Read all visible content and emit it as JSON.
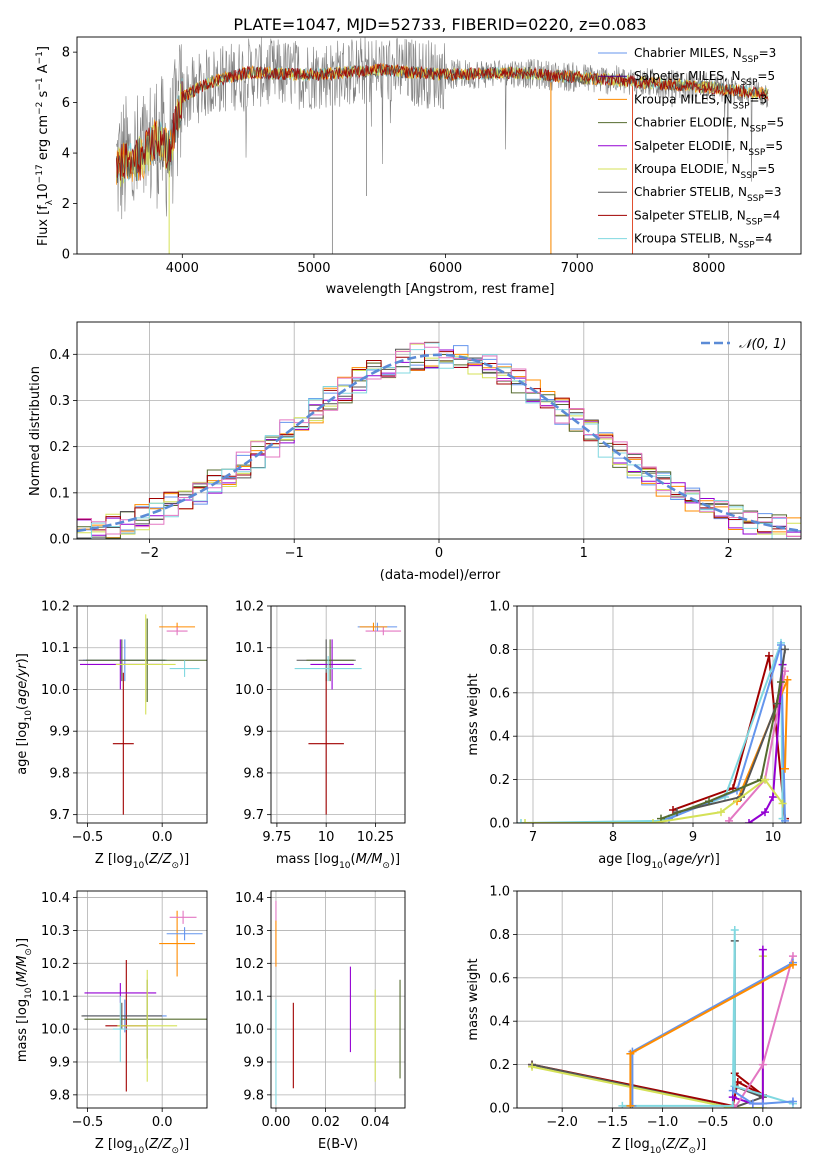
{
  "figure": {
    "title": "PLATE=1047, MJD=52733, FIBERID=0220, z=0.083"
  },
  "colors": {
    "Chabrier MILES": "#6495ed",
    "Salpeter MILES": "#4b0082",
    "Kroupa MILES": "#ff8c00",
    "Chabrier ELODIE": "#556b2f",
    "Salpeter ELODIE": "#9400d3",
    "Kroupa ELODIE": "#d4e157",
    "Chabrier STELIB": "#555555",
    "Salpeter STELIB": "#a00000",
    "Kroupa STELIB": "#80d8e0",
    "extra_pink": "#e377c2",
    "gauss": "#5b8bd6",
    "spectrum_data": "#808080"
  },
  "chart_data": [
    {
      "id": "spectrum",
      "type": "line",
      "title": "PLATE=1047, MJD=52733, FIBERID=0220, z=0.083",
      "xlabel": "wavelength [Angstrom, rest frame]",
      "ylabel": "Flux [f_λ 10^-17 erg cm^-2 s^-1 A^-1]",
      "xlim": [
        3200,
        8700
      ],
      "ylim": [
        0,
        8.6
      ],
      "xticks": [
        4000,
        5000,
        6000,
        7000,
        8000
      ],
      "yticks": [
        0,
        2,
        4,
        6,
        8
      ],
      "legend": {
        "placement": "right",
        "entries": [
          {
            "name": "Chabrier MILES",
            "nssp": "3"
          },
          {
            "name": "Salpeter MILES",
            "nssp": "5"
          },
          {
            "name": "Kroupa MILES",
            "nssp": "3"
          },
          {
            "name": "Chabrier ELODIE",
            "nssp": "5"
          },
          {
            "name": "Salpeter ELODIE",
            "nssp": "5"
          },
          {
            "name": "Kroupa ELODIE",
            "nssp": "5"
          },
          {
            "name": "Chabrier STELIB",
            "nssp": "3"
          },
          {
            "name": "Salpeter STELIB",
            "nssp": "4"
          },
          {
            "name": "Kroupa STELIB",
            "nssp": "4"
          }
        ]
      },
      "continuum": {
        "x": [
          3500,
          3700,
          3800,
          3900,
          4000,
          4200,
          4500,
          5000,
          5500,
          6000,
          6500,
          7000,
          7500,
          8000,
          8500
        ],
        "y": [
          3.5,
          3.8,
          4.6,
          4.0,
          6.2,
          6.8,
          7.2,
          7.1,
          7.3,
          7.1,
          7.2,
          7.0,
          6.8,
          6.6,
          6.3
        ]
      },
      "model_range": [
        3500,
        8450
      ],
      "data_range": [
        3500,
        8450
      ],
      "dips": [
        {
          "x": 5140,
          "y": 0
        },
        {
          "x": 5400,
          "y": 2.3
        },
        {
          "x": 6800,
          "y": 0
        },
        {
          "x": 7420,
          "y": 0
        }
      ]
    },
    {
      "id": "residual_hist",
      "type": "line",
      "xlabel": "(data-model)/error",
      "ylabel": "Normed distribution",
      "xlim": [
        -2.5,
        2.5
      ],
      "ylim": [
        0,
        0.47
      ],
      "xticks": [
        -2,
        -1,
        0,
        1,
        2
      ],
      "yticks": [
        0.0,
        0.1,
        0.2,
        0.3,
        0.4
      ],
      "legend": "𝒩(0, 1)",
      "gauss": {
        "mu": 0,
        "sigma": 1
      },
      "bin_width": 0.1
    },
    {
      "id": "z_age",
      "type": "scatter",
      "xlabel": "Z [log10(Z/Z⊙)]",
      "ylabel": "age  [log10(age/yr)]",
      "xlim": [
        -0.57,
        0.3
      ],
      "ylim": [
        9.68,
        10.2
      ],
      "xticks": [
        -0.5,
        0.0
      ],
      "xticklabels": [
        "−0.5",
        "0.0"
      ],
      "yticks": [
        9.7,
        9.8,
        9.9,
        10.0,
        10.1,
        10.2
      ],
      "points": [
        {
          "x": -0.25,
          "y": 10.07,
          "xerr": 0.28,
          "yerr": 0.05,
          "c": "#6495ed"
        },
        {
          "x": -0.26,
          "y": 9.87,
          "xerr": 0.07,
          "yerr": 0.17,
          "c": "#a00000"
        },
        {
          "x": -0.28,
          "y": 10.06,
          "xerr": 0.27,
          "yerr": 0.06,
          "c": "#9400d3"
        },
        {
          "x": -0.27,
          "y": 10.07,
          "xerr": 0.29,
          "yerr": 0.05,
          "c": "#555555"
        },
        {
          "x": -0.1,
          "y": 10.07,
          "xerr": 0.41,
          "yerr": 0.1,
          "c": "#556b2f"
        },
        {
          "x": -0.11,
          "y": 10.06,
          "xerr": 0.2,
          "yerr": 0.12,
          "c": "#d4e157"
        },
        {
          "x": 0.1,
          "y": 10.15,
          "xerr": 0.12,
          "yerr": 0.01,
          "c": "#ff8c00"
        },
        {
          "x": 0.1,
          "y": 10.14,
          "xerr": 0.07,
          "yerr": 0.01,
          "c": "#e377c2"
        },
        {
          "x": 0.15,
          "y": 10.05,
          "xerr": 0.1,
          "yerr": 0.02,
          "c": "#80d8e0"
        }
      ]
    },
    {
      "id": "mass_age",
      "type": "scatter",
      "xlabel": "mass [log10(M/M⊙)]",
      "ylabel": "",
      "xlim": [
        9.72,
        10.4
      ],
      "ylim": [
        9.68,
        10.2
      ],
      "xticks": [
        9.75,
        10.0,
        10.25
      ],
      "yticks": [
        9.7,
        9.8,
        9.9,
        10.0,
        10.1,
        10.2
      ],
      "points": [
        {
          "x": 10.0,
          "y": 10.07,
          "xerr": 0.15,
          "yerr": 0.05,
          "c": "#555555"
        },
        {
          "x": 10.0,
          "y": 9.87,
          "xerr": 0.09,
          "yerr": 0.17,
          "c": "#a00000"
        },
        {
          "x": 10.03,
          "y": 10.06,
          "xerr": 0.11,
          "yerr": 0.06,
          "c": "#9400d3"
        },
        {
          "x": 10.02,
          "y": 10.07,
          "xerr": 0.12,
          "yerr": 0.05,
          "c": "#556b2f"
        },
        {
          "x": 10.01,
          "y": 10.05,
          "xerr": 0.17,
          "yerr": 0.03,
          "c": "#80d8e0"
        },
        {
          "x": 10.29,
          "y": 10.14,
          "xerr": 0.09,
          "yerr": 0.01,
          "c": "#e377c2"
        },
        {
          "x": 10.26,
          "y": 10.15,
          "xerr": 0.1,
          "yerr": 0.01,
          "c": "#6495ed"
        },
        {
          "x": 10.24,
          "y": 10.15,
          "xerr": 0.07,
          "yerr": 0.01,
          "c": "#ff8c00"
        }
      ]
    },
    {
      "id": "age_weight",
      "type": "line",
      "xlabel": "age  [log10(age/yr)]",
      "ylabel": "mass weight",
      "xlim": [
        6.8,
        10.35
      ],
      "ylim": [
        0,
        1.0
      ],
      "xticks": [
        7,
        8,
        9,
        10
      ],
      "yticks": [
        0.0,
        0.2,
        0.4,
        0.6,
        0.8,
        1.0
      ],
      "series": [
        {
          "c": "#a00000",
          "x": [
            8.75,
            9.5,
            9.95,
            10.15
          ],
          "y": [
            0.06,
            0.16,
            0.77,
            0.02
          ]
        },
        {
          "c": "#80d8e0",
          "x": [
            6.85,
            8.6,
            9.4,
            10.1,
            10.12
          ],
          "y": [
            0.0,
            0.01,
            0.12,
            0.83,
            0.02
          ]
        },
        {
          "c": "#6495ed",
          "x": [
            8.7,
            9.55,
            10.1,
            10.15
          ],
          "y": [
            0.02,
            0.15,
            0.82,
            0.01
          ]
        },
        {
          "c": "#ff8c00",
          "x": [
            9.55,
            10.18,
            10.15
          ],
          "y": [
            0.1,
            0.66,
            0.25
          ]
        },
        {
          "c": "#e377c2",
          "x": [
            9.45,
            9.9,
            10.15
          ],
          "y": [
            0.01,
            0.2,
            0.7
          ]
        },
        {
          "c": "#9400d3",
          "x": [
            9.7,
            9.9,
            10.0,
            10.12
          ],
          "y": [
            0.0,
            0.05,
            0.12,
            0.73
          ]
        },
        {
          "c": "#555555",
          "x": [
            8.8,
            9.6,
            10.05,
            10.15
          ],
          "y": [
            0.05,
            0.12,
            0.55,
            0.8
          ]
        },
        {
          "c": "#556b2f",
          "x": [
            8.6,
            9.2,
            9.85,
            10.1
          ],
          "y": [
            0.02,
            0.1,
            0.2,
            0.65
          ]
        },
        {
          "c": "#d4e157",
          "x": [
            6.9,
            8.5,
            9.35,
            9.9,
            10.12
          ],
          "y": [
            0.0,
            0.0,
            0.05,
            0.2,
            0.09
          ]
        }
      ]
    },
    {
      "id": "z_mass",
      "type": "scatter",
      "xlabel": "Z [log10(Z/Z⊙)]",
      "ylabel": "mass [log10(M/M⊙)]",
      "xlim": [
        -0.57,
        0.3
      ],
      "ylim": [
        9.76,
        10.42
      ],
      "xticks": [
        -0.5,
        0.0
      ],
      "xticklabels": [
        "−0.5",
        "0.0"
      ],
      "yticks": [
        9.8,
        9.9,
        10.0,
        10.1,
        10.2,
        10.3,
        10.4
      ],
      "points": [
        {
          "x": -0.25,
          "y": 10.04,
          "xerr": 0.28,
          "yerr": 0.05,
          "c": "#6495ed"
        },
        {
          "x": -0.24,
          "y": 10.01,
          "xerr": 0.14,
          "yerr": 0.2,
          "c": "#a00000"
        },
        {
          "x": -0.28,
          "y": 10.11,
          "xerr": 0.24,
          "yerr": 0.03,
          "c": "#9400d3"
        },
        {
          "x": -0.27,
          "y": 10.04,
          "xerr": 0.27,
          "yerr": 0.04,
          "c": "#555555"
        },
        {
          "x": -0.1,
          "y": 10.03,
          "xerr": 0.42,
          "yerr": 0.12,
          "c": "#556b2f"
        },
        {
          "x": -0.1,
          "y": 10.01,
          "xerr": 0.2,
          "yerr": 0.17,
          "c": "#d4e157"
        },
        {
          "x": 0.1,
          "y": 10.26,
          "xerr": 0.12,
          "yerr": 0.1,
          "c": "#ff8c00"
        },
        {
          "x": 0.14,
          "y": 10.34,
          "xerr": 0.09,
          "yerr": 0.02,
          "c": "#e377c2"
        },
        {
          "x": 0.15,
          "y": 10.29,
          "xerr": 0.12,
          "yerr": 0.02,
          "c": "#6495ed"
        },
        {
          "x": -0.28,
          "y": 10.0,
          "xerr": 0.05,
          "yerr": 0.1,
          "c": "#80d8e0"
        }
      ]
    },
    {
      "id": "ebv_mass",
      "type": "scatter",
      "xlabel": "E(B-V)",
      "ylabel": "",
      "xlim": [
        -0.002,
        0.052
      ],
      "ylim": [
        9.76,
        10.42
      ],
      "xticks": [
        0.0,
        0.02,
        0.04
      ],
      "xticklabels": [
        "0.00",
        "0.02",
        "0.04"
      ],
      "yticks": [
        9.8,
        9.9,
        10.0,
        10.1,
        10.2,
        10.3,
        10.4
      ],
      "points": [
        {
          "x": 0.0,
          "y": 10.29,
          "yerr": 0.1,
          "c": "#e377c2"
        },
        {
          "x": 0.0,
          "y": 10.26,
          "yerr": 0.07,
          "c": "#ff8c00"
        },
        {
          "x": 0.0,
          "y": 9.93,
          "yerr": 0.16,
          "c": "#80d8e0"
        },
        {
          "x": 0.007,
          "y": 9.95,
          "yerr": 0.13,
          "c": "#a00000"
        },
        {
          "x": 0.03,
          "y": 10.06,
          "yerr": 0.13,
          "c": "#9400d3"
        },
        {
          "x": 0.04,
          "y": 9.98,
          "yerr": 0.14,
          "c": "#d4e157"
        },
        {
          "x": 0.05,
          "y": 10.0,
          "yerr": 0.15,
          "c": "#556b2f"
        }
      ]
    },
    {
      "id": "z_weight",
      "type": "line",
      "xlabel": "Z [log10(Z/Z⊙)]",
      "ylabel": "mass weight",
      "xlim": [
        -2.45,
        0.38
      ],
      "ylim": [
        0,
        1.0
      ],
      "xticks": [
        -2.0,
        -1.5,
        -1.0,
        -0.5,
        0.0
      ],
      "xticklabels": [
        "−2.0",
        "−1.5",
        "−1.0",
        "−0.5",
        "0.0"
      ],
      "yticks": [
        0.0,
        0.2,
        0.4,
        0.6,
        0.8,
        1.0
      ],
      "series": [
        {
          "c": "#a00000",
          "x": [
            -2.3,
            -0.3,
            -0.25,
            0.0,
            -0.28
          ],
          "y": [
            0.2,
            0.01,
            0.12,
            0.06,
            0.16
          ]
        },
        {
          "c": "#555555",
          "x": [
            -2.3,
            -0.3,
            0.0,
            -0.28,
            -0.28
          ],
          "y": [
            0.2,
            0.0,
            0.05,
            0.1,
            0.77
          ]
        },
        {
          "c": "#d4e157",
          "x": [
            -2.3,
            -0.3,
            0.0,
            0.0
          ],
          "y": [
            0.19,
            0.0,
            0.0,
            0.7
          ]
        },
        {
          "c": "#80d8e0",
          "x": [
            -1.4,
            -0.3,
            -0.28,
            -0.28,
            0.3
          ],
          "y": [
            0.01,
            0.01,
            0.82,
            0.1,
            0.02
          ]
        },
        {
          "c": "#9400d3",
          "x": [
            -0.3,
            -0.1,
            0.0,
            0.0
          ],
          "y": [
            0.05,
            0.02,
            0.02,
            0.73
          ]
        },
        {
          "c": "#e377c2",
          "x": [
            -0.28,
            0.0,
            0.3
          ],
          "y": [
            0.0,
            0.2,
            0.7
          ]
        },
        {
          "c": "#6495ed",
          "x": [
            -1.3,
            -1.3,
            0.3
          ],
          "y": [
            0.01,
            0.26,
            0.67
          ]
        },
        {
          "c": "#ff8c00",
          "x": [
            -1.32,
            -1.32,
            0.3
          ],
          "y": [
            0.01,
            0.25,
            0.66
          ]
        },
        {
          "c": "#6495ed",
          "x": [
            -0.3,
            -0.1,
            0.0,
            0.3
          ],
          "y": [
            0.08,
            0.02,
            0.02,
            0.03
          ]
        }
      ]
    }
  ]
}
